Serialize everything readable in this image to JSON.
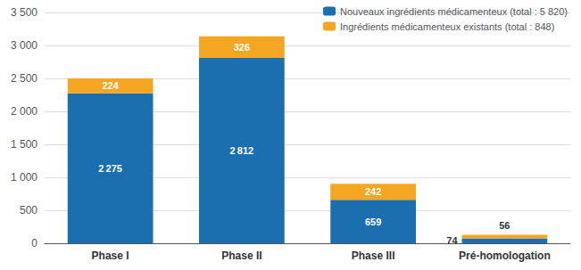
{
  "chart_data": {
    "type": "bar",
    "stacked": true,
    "categories": [
      "Phase I",
      "Phase II",
      "Phase III",
      "Pré-homologation"
    ],
    "series": [
      {
        "name": "Nouveaux ingrédients médicamenteux (total : 5 820)",
        "color": "#1B6FAF",
        "values": [
          2275,
          2812,
          659,
          74
        ],
        "value_labels": [
          "2 275",
          "2 812",
          "659",
          "74"
        ]
      },
      {
        "name": "Ingrédients médicamenteux existants (total : 848)",
        "color": "#F5A623",
        "values": [
          224,
          326,
          242,
          56
        ]
      }
    ],
    "ylim": [
      0,
      3500
    ],
    "yticks": [
      0,
      500,
      {
        "value": 1000,
        "label": "1 000"
      },
      {
        "value": 1500,
        "label": "1 500"
      },
      {
        "value": 2000,
        "label": "2 000"
      },
      {
        "value": 2500,
        "label": "2 500"
      },
      {
        "value": 3000,
        "label": "3 000"
      },
      {
        "value": 3500,
        "label": "3 500"
      }
    ],
    "grid": true,
    "legend": "upper right",
    "data_labels": true
  }
}
